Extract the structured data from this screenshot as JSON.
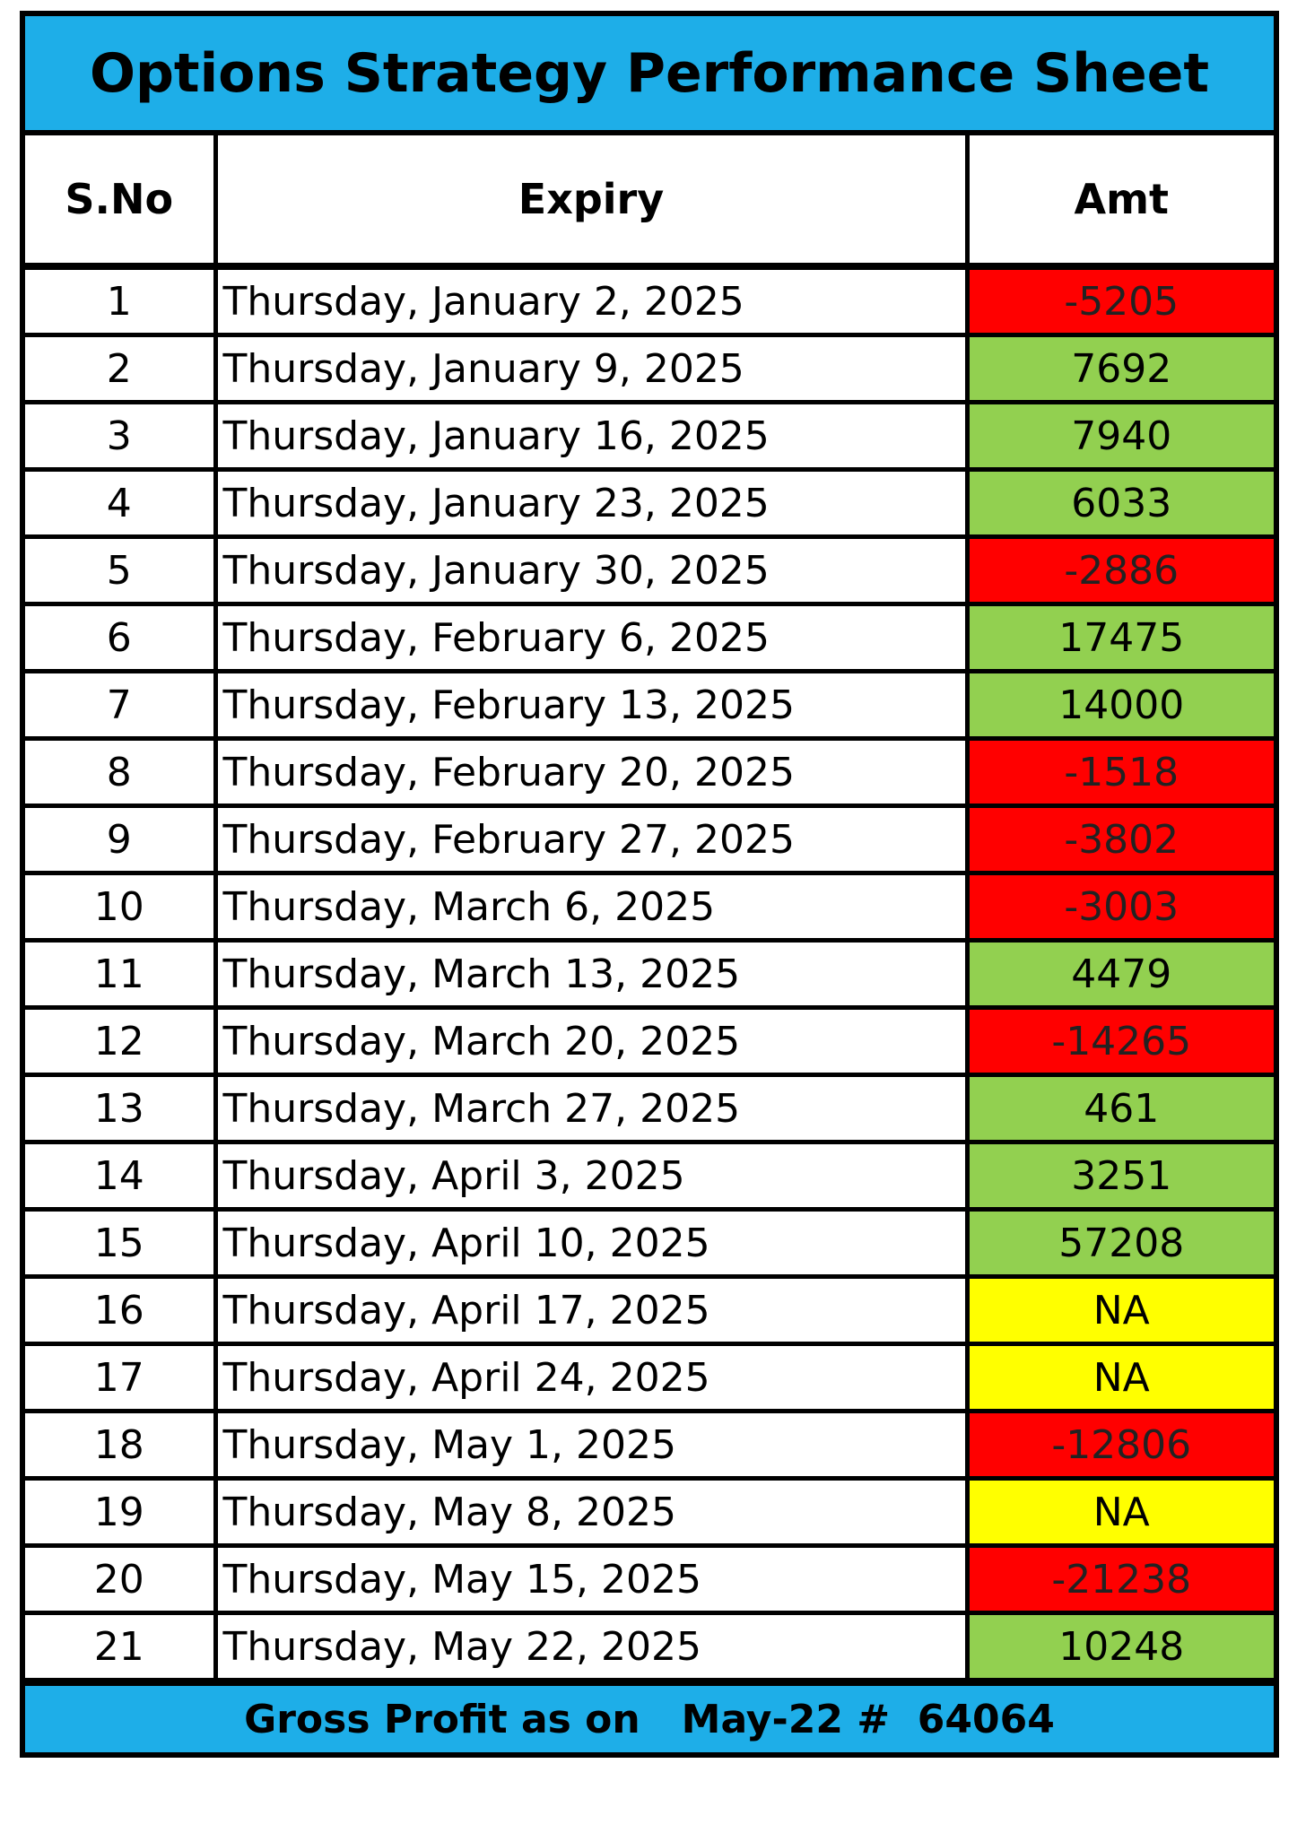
{
  "sheet": {
    "title": "Options Strategy Performance Sheet",
    "headers": {
      "sno": "S.No",
      "expiry": "Expiry",
      "amt": "Amt"
    },
    "colors": {
      "title_bg": "#1eaee8",
      "loss": "#ff0000",
      "profit": "#92d050",
      "na": "#ffff00"
    },
    "rows": [
      {
        "sno": "1",
        "expiry": "Thursday, January 2, 2025",
        "amt": "-5205",
        "status": "loss"
      },
      {
        "sno": "2",
        "expiry": "Thursday, January 9, 2025",
        "amt": "7692",
        "status": "profit"
      },
      {
        "sno": "3",
        "expiry": "Thursday, January 16, 2025",
        "amt": "7940",
        "status": "profit"
      },
      {
        "sno": "4",
        "expiry": "Thursday, January 23, 2025",
        "amt": "6033",
        "status": "profit"
      },
      {
        "sno": "5",
        "expiry": "Thursday, January 30, 2025",
        "amt": "-2886",
        "status": "loss"
      },
      {
        "sno": "6",
        "expiry": "Thursday, February 6, 2025",
        "amt": "17475",
        "status": "profit"
      },
      {
        "sno": "7",
        "expiry": "Thursday, February 13, 2025",
        "amt": "14000",
        "status": "profit"
      },
      {
        "sno": "8",
        "expiry": "Thursday, February 20, 2025",
        "amt": "-1518",
        "status": "loss"
      },
      {
        "sno": "9",
        "expiry": "Thursday, February 27, 2025",
        "amt": "-3802",
        "status": "loss"
      },
      {
        "sno": "10",
        "expiry": "Thursday, March 6, 2025",
        "amt": "-3003",
        "status": "loss"
      },
      {
        "sno": "11",
        "expiry": "Thursday, March 13, 2025",
        "amt": "4479",
        "status": "profit"
      },
      {
        "sno": "12",
        "expiry": "Thursday, March 20, 2025",
        "amt": "-14265",
        "status": "loss"
      },
      {
        "sno": "13",
        "expiry": "Thursday, March 27, 2025",
        "amt": "461",
        "status": "profit"
      },
      {
        "sno": "14",
        "expiry": "Thursday, April 3, 2025",
        "amt": "3251",
        "status": "profit"
      },
      {
        "sno": "15",
        "expiry": "Thursday, April 10, 2025",
        "amt": "57208",
        "status": "profit"
      },
      {
        "sno": "16",
        "expiry": "Thursday, April 17, 2025",
        "amt": "NA",
        "status": "na"
      },
      {
        "sno": "17",
        "expiry": "Thursday, April 24, 2025",
        "amt": "NA",
        "status": "na"
      },
      {
        "sno": "18",
        "expiry": "Thursday, May 1, 2025",
        "amt": "-12806",
        "status": "loss"
      },
      {
        "sno": "19",
        "expiry": "Thursday, May 8, 2025",
        "amt": "NA",
        "status": "na"
      },
      {
        "sno": "20",
        "expiry": "Thursday, May 15, 2025",
        "amt": "-21238",
        "status": "loss"
      },
      {
        "sno": "21",
        "expiry": "Thursday, May 22, 2025",
        "amt": "10248",
        "status": "profit"
      }
    ],
    "footer": "Gross Profit as on   May-22 #  64064"
  }
}
